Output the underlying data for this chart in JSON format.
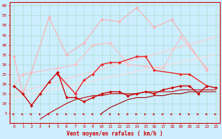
{
  "xlabel": "Vent moyen/en rafales ( km/h )",
  "xlim": [
    -0.5,
    23.5
  ],
  "ylim": [
    0,
    62
  ],
  "yticks": [
    5,
    10,
    15,
    20,
    25,
    30,
    35,
    40,
    45,
    50,
    55,
    60
  ],
  "xticks": [
    0,
    1,
    2,
    3,
    4,
    5,
    6,
    7,
    8,
    9,
    10,
    11,
    12,
    13,
    14,
    15,
    16,
    17,
    18,
    19,
    20,
    21,
    22,
    23
  ],
  "background_color": "#cceeff",
  "grid_color": "#aaddcc",
  "series": [
    {
      "y": [
        34,
        15,
        26,
        null,
        54,
        null,
        35,
        null,
        41,
        null,
        53,
        null,
        52,
        null,
        59,
        null,
        49,
        null,
        53,
        null,
        null,
        null,
        27,
        null
      ],
      "color": "#ffaaaa",
      "marker": true,
      "linewidth": 0.8
    },
    {
      "y": [
        19,
        25,
        null,
        null,
        null,
        28,
        null,
        30,
        null,
        40,
        null,
        41,
        null,
        30,
        null,
        29,
        null,
        28,
        null,
        44,
        null,
        null,
        28,
        null
      ],
      "color": "#ffbbbb",
      "marker": true,
      "linewidth": 0.8
    },
    {
      "y": [
        null,
        null,
        null,
        null,
        null,
        25,
        null,
        15,
        22,
        25,
        30,
        31,
        31,
        null,
        34,
        34,
        27,
        null,
        null,
        25,
        25,
        null,
        19,
        null
      ],
      "color": "#ee2222",
      "marker": true,
      "linewidth": 1.0
    },
    {
      "y": [
        19,
        15,
        9,
        15,
        21,
        26,
        13,
        13,
        11,
        13,
        15,
        16,
        16,
        14,
        15,
        16,
        15,
        17,
        18,
        19,
        19,
        15,
        19,
        18
      ],
      "color": "#cc0000",
      "marker": true,
      "linewidth": 1.0
    },
    {
      "y": [
        null,
        null,
        null,
        null,
        null,
        null,
        null,
        null,
        null,
        null,
        null,
        null,
        null,
        null,
        null,
        null,
        null,
        null,
        null,
        null,
        null,
        null,
        null,
        null
      ],
      "color": "#dd0000",
      "linear": [
        15,
        20
      ],
      "marker": false,
      "linewidth": 1.0
    },
    {
      "y": [
        null,
        null,
        null,
        null,
        null,
        null,
        null,
        null,
        null,
        null,
        null,
        null,
        null,
        null,
        null,
        null,
        null,
        null,
        null,
        null,
        null,
        null,
        null,
        null
      ],
      "color": "#ff4444",
      "linear": [
        13,
        18
      ],
      "marker": false,
      "linewidth": 1.0
    },
    {
      "y": [
        null,
        null,
        null,
        2,
        5,
        null,
        10,
        12,
        13,
        14,
        14,
        15,
        15,
        15,
        15,
        16,
        16,
        16,
        16,
        17,
        17,
        17,
        17,
        17
      ],
      "color": "#bb0000",
      "marker": false,
      "linewidth": 0.8
    },
    {
      "y": [
        null,
        null,
        null,
        null,
        null,
        null,
        null,
        null,
        null,
        null,
        5,
        8,
        10,
        12,
        13,
        13,
        14,
        14,
        15,
        15,
        16,
        16,
        16,
        16
      ],
      "color": "#990000",
      "marker": false,
      "linewidth": 0.8
    }
  ]
}
